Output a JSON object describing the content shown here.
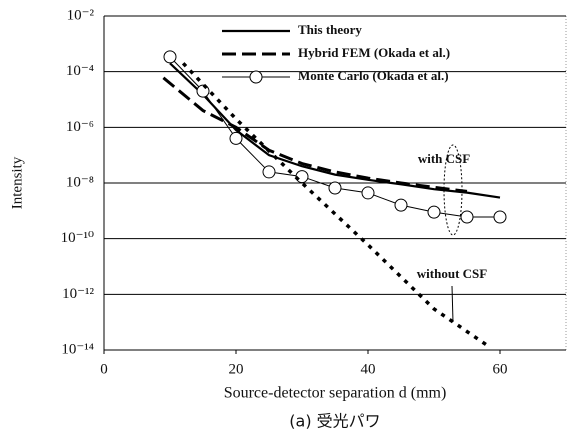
{
  "chart_data": {
    "type": "line",
    "log_y": true,
    "grid": true,
    "xlabel": "Source-detector separation d (mm)",
    "ylabel": "Intensity",
    "caption": "(a) 受光パワ",
    "xlim": [
      0,
      70
    ],
    "xticks": [
      0,
      20,
      40,
      60
    ],
    "ylim": [
      1e-14,
      0.01
    ],
    "yticks": [
      {
        "value": 1e-14,
        "label": "10⁻¹⁴"
      },
      {
        "value": 1e-12,
        "label": "10⁻¹²"
      },
      {
        "value": 1e-10,
        "label": "10⁻¹⁰"
      },
      {
        "value": 1e-08,
        "label": "10⁻⁸"
      },
      {
        "value": 1e-06,
        "label": "10⁻⁶"
      },
      {
        "value": 0.0001,
        "label": "10⁻⁴"
      },
      {
        "value": 0.01,
        "label": "10⁻²"
      }
    ],
    "legend_position": "upper right",
    "series": [
      {
        "name": "This theory",
        "color": "#000000",
        "style": "solid",
        "x": [
          10,
          15,
          20,
          25,
          30,
          35,
          40,
          45,
          50,
          55,
          60
        ],
        "values": [
          0.0002,
          1.5e-05,
          8e-07,
          1e-07,
          4e-08,
          2e-08,
          1.3e-08,
          9e-09,
          6e-09,
          4.5e-09,
          3e-09
        ]
      },
      {
        "name": "Hybrid FEM  (Okada et al.)",
        "color": "#000000",
        "style": "dashed",
        "x": [
          9,
          15,
          20,
          25,
          30,
          35,
          40,
          45,
          50,
          55
        ],
        "values": [
          6e-05,
          4e-06,
          1e-06,
          1.5e-07,
          5e-08,
          2.5e-08,
          1.5e-08,
          1e-08,
          7e-09,
          5e-09
        ]
      },
      {
        "name": "Monte Carlo  (Okada et al.)",
        "color": "#000000",
        "style": "circles",
        "x": [
          10,
          15,
          20,
          25,
          30,
          35,
          40,
          45,
          50,
          55,
          60
        ],
        "values": [
          0.00034,
          2e-05,
          4e-07,
          2.5e-08,
          1.7e-08,
          6.6e-09,
          4.4e-09,
          1.6e-09,
          9e-10,
          6e-10,
          6e-10
        ]
      },
      {
        "name": "without CSF",
        "color": "#000000",
        "style": "dotted",
        "x": [
          12,
          20,
          30,
          40,
          50,
          58
        ],
        "values": [
          0.0002,
          2e-06,
          1e-08,
          6e-11,
          3e-13,
          1.5e-14
        ]
      }
    ],
    "annotations": [
      "with CSF",
      "without CSF"
    ]
  }
}
